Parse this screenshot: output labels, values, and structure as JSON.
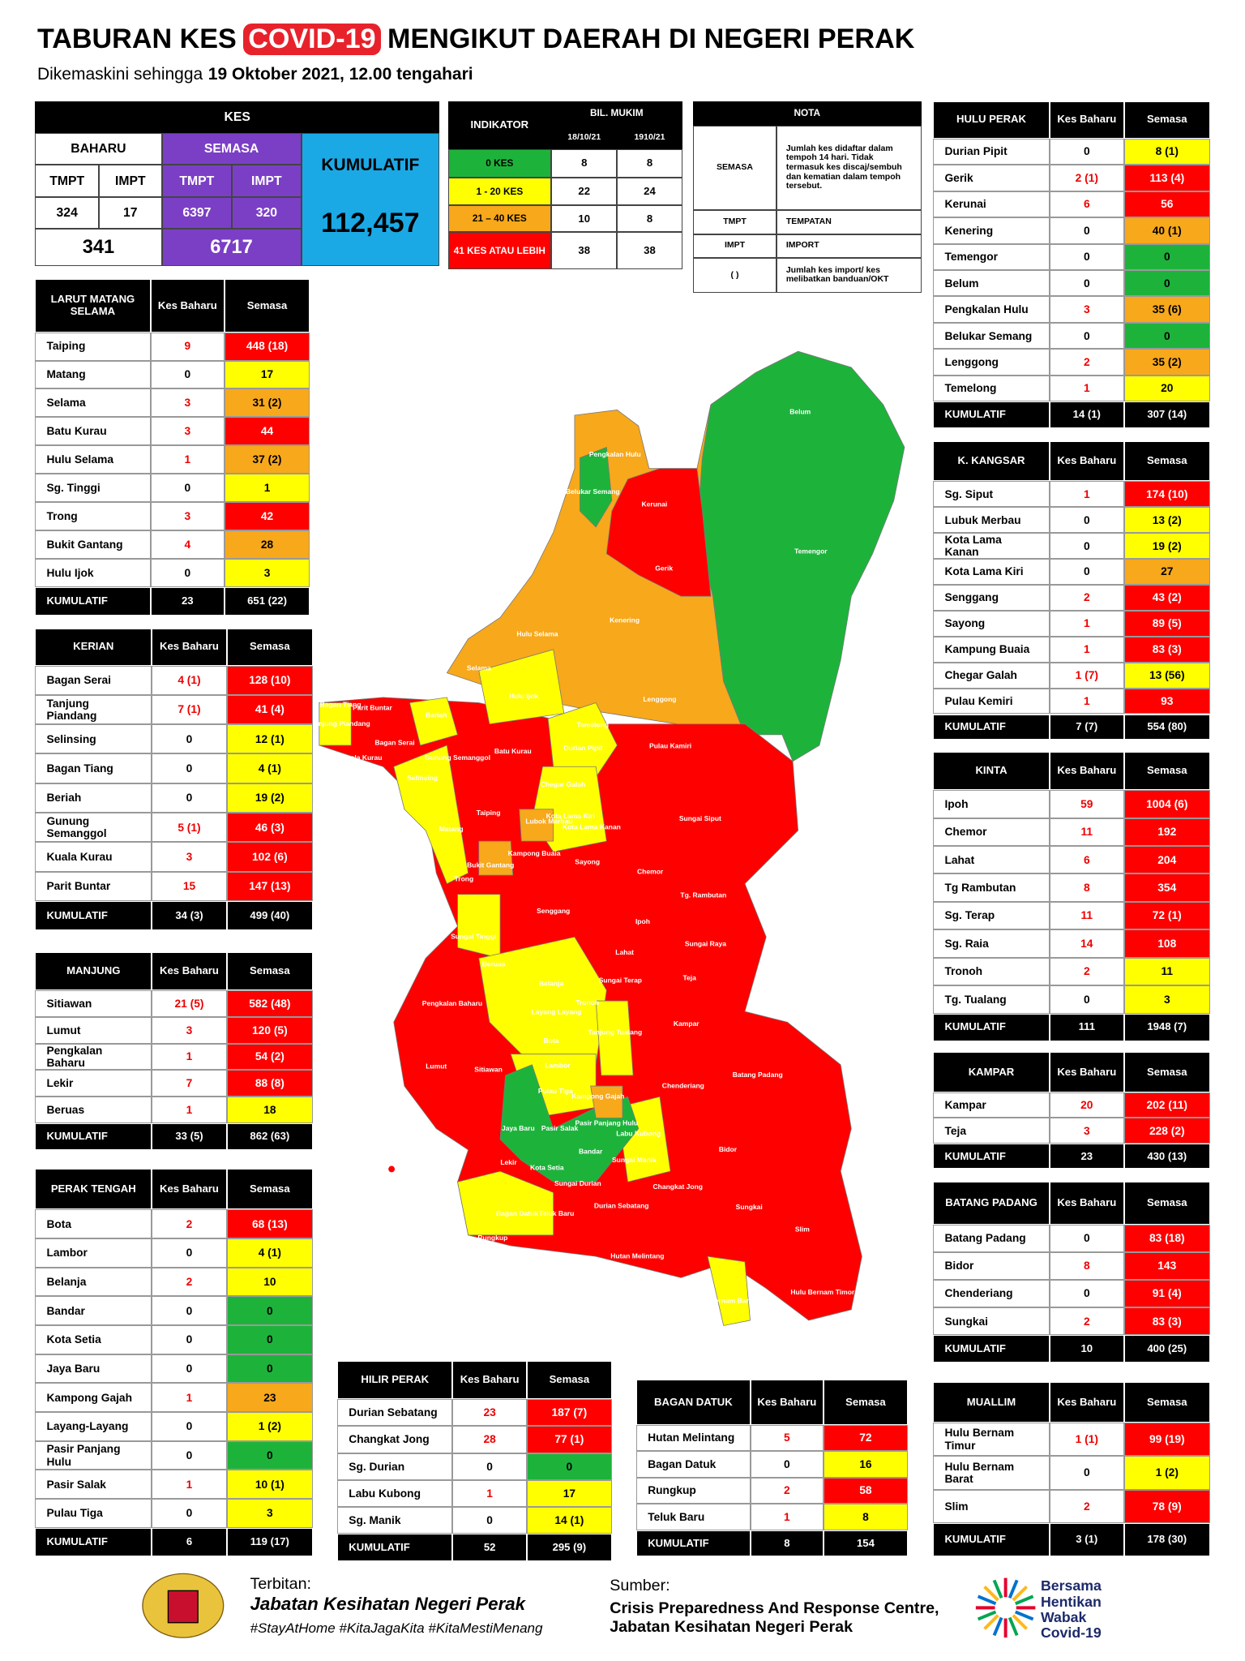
{
  "header": {
    "title_start": "TABURAN KES",
    "title_highlight": "COVID-19",
    "title_end": "MENGIKUT DAERAH DI NEGERI PERAK",
    "subtitle_start": "Dikemaskini sehingga",
    "subtitle_date": "19 Oktober 2021, 12.00 tengahari"
  },
  "summary": {
    "kes": "KES",
    "baharu": "BAHARU",
    "semasa": "SEMASA",
    "baharu_tmpt_label": "TMPT",
    "baharu_impt_label": "IMPT",
    "semasa_tmpt_label": "TMPT",
    "semasa_impt_label": "IMPT",
    "baharu_tmpt": "324",
    "baharu_impt": "17",
    "semasa_tmpt": "6397",
    "semasa_impt": "320",
    "baharu_total": "341",
    "semasa_total": "6717",
    "kumulatif_label": "KUMULATIF",
    "kumulatif": "112,457"
  },
  "indicator": {
    "title": "INDIKATOR",
    "bil_mukim": "BIL. MUKIM",
    "date1": "18/10/21",
    "date2": "1910/21",
    "rows": [
      [
        "0 KES",
        "8",
        "8",
        "#1db33b"
      ],
      [
        "1 - 20 KES",
        "22",
        "24",
        "#ffff00"
      ],
      [
        "21 – 40 KES",
        "10",
        "8",
        "#f7a81b"
      ],
      [
        "41 KES ATAU LEBIH",
        "38",
        "38",
        "#ff0000"
      ]
    ]
  },
  "nota": {
    "title": "NOTA",
    "rows": [
      [
        "SEMASA",
        "Jumlah kes didaftar dalam tempoh 14 hari. Tidak termasuk kes discaj/sembuh dan kematian dalam tempoh tersebut."
      ],
      [
        "TMPT",
        "TEMPATAN"
      ],
      [
        "IMPT",
        "IMPORT"
      ],
      [
        "(     )",
        "Jumlah kes import/ kes melibatkan banduan/OKT"
      ]
    ]
  },
  "districts": [
    {
      "title": "HULU PERAK",
      "kes_header": "Kes Baharu",
      "semasa_header": "Semasa",
      "rows": [
        [
          "Durian Pipit",
          "0",
          "8 (1)",
          "#ffff00"
        ],
        [
          "Gerik",
          "2 (1)",
          "113 (4)",
          "#ff0000"
        ],
        [
          "Kerunai",
          "6",
          "56",
          "#ff0000"
        ],
        [
          "Kenering",
          "0",
          "40 (1)",
          "#f7a81b"
        ],
        [
          "Temengor",
          "0",
          "0",
          "#1db33b"
        ],
        [
          "Belum",
          "0",
          "0",
          "#1db33b"
        ],
        [
          "Pengkalan Hulu",
          "3",
          "35 (6)",
          "#f7a81b"
        ],
        [
          "Belukar Semang",
          "0",
          "0",
          "#1db33b"
        ],
        [
          "Lenggong",
          "2",
          "35 (2)",
          "#f7a81b"
        ],
        [
          "Temelong",
          "1",
          "20",
          "#ffff00"
        ]
      ],
      "total": {
        "label": "KUMULATIF",
        "baharu": "14 (1)",
        "semasa": "307 (14)"
      }
    },
    {
      "title": "LARUT MATANG SELAMA",
      "kes_header": "Kes Baharu",
      "semasa_header": "Semasa",
      "rows": [
        [
          "Taiping",
          "9",
          "448 (18)",
          "#ff0000"
        ],
        [
          "Matang",
          "0",
          "17",
          "#ffff00"
        ],
        [
          "Selama",
          "3",
          "31 (2)",
          "#f7a81b"
        ],
        [
          "Batu Kurau",
          "3",
          "44",
          "#ff0000"
        ],
        [
          "Hulu Selama",
          "1",
          "37 (2)",
          "#f7a81b"
        ],
        [
          "Sg. Tinggi",
          "0",
          "1",
          "#ffff00"
        ],
        [
          "Trong",
          "3",
          "42",
          "#ff0000"
        ],
        [
          "Bukit Gantang",
          "4",
          "28",
          "#f7a81b"
        ],
        [
          "Hulu Ijok",
          "0",
          "3",
          "#ffff00"
        ]
      ],
      "total": {
        "label": "KUMULATIF",
        "baharu": "23",
        "semasa": "651 (22)"
      }
    },
    {
      "title": "KERIAN",
      "kes_header": "Kes Baharu",
      "semasa_header": "Semasa",
      "rows": [
        [
          "Bagan Serai",
          "4 (1)",
          "128 (10)",
          "#ff0000"
        ],
        [
          "Tanjung Piandang",
          "7 (1)",
          "41 (4)",
          "#ff0000"
        ],
        [
          "Selinsing",
          "0",
          "12 (1)",
          "#ffff00"
        ],
        [
          "Bagan Tiang",
          "0",
          "4 (1)",
          "#ffff00"
        ],
        [
          "Beriah",
          "0",
          "19 (2)",
          "#ffff00"
        ],
        [
          "Gunung Semanggol",
          "5 (1)",
          "46 (3)",
          "#ff0000"
        ],
        [
          "Kuala Kurau",
          "3",
          "102 (6)",
          "#ff0000"
        ],
        [
          "Parit Buntar",
          "15",
          "147 (13)",
          "#ff0000"
        ]
      ],
      "total": {
        "label": "KUMULATIF",
        "baharu": "34 (3)",
        "semasa": "499 (40)"
      }
    },
    {
      "title": "MANJUNG",
      "kes_header": "Kes Baharu",
      "semasa_header": "Semasa",
      "rows": [
        [
          "Sitiawan",
          "21 (5)",
          "582 (48)",
          "#ff0000"
        ],
        [
          "Lumut",
          "3",
          "120 (5)",
          "#ff0000"
        ],
        [
          "Pengkalan Baharu",
          "1",
          "54 (2)",
          "#ff0000"
        ],
        [
          "Lekir",
          "7",
          "88 (8)",
          "#ff0000"
        ],
        [
          "Beruas",
          "1",
          "18",
          "#ffff00"
        ]
      ],
      "total": {
        "label": "KUMULATIF",
        "baharu": "33 (5)",
        "semasa": "862 (63)"
      }
    },
    {
      "title": "PERAK TENGAH",
      "kes_header": "Kes Baharu",
      "semasa_header": "Semasa",
      "rows": [
        [
          "Bota",
          "2",
          "68 (13)",
          "#ff0000"
        ],
        [
          "Lambor",
          "0",
          "4 (1)",
          "#ffff00"
        ],
        [
          "Belanja",
          "2",
          "10",
          "#ffff00"
        ],
        [
          "Bandar",
          "0",
          "0",
          "#1db33b"
        ],
        [
          "Kota Setia",
          "0",
          "0",
          "#1db33b"
        ],
        [
          "Jaya Baru",
          "0",
          "0",
          "#1db33b"
        ],
        [
          "Kampong Gajah",
          "1",
          "23",
          "#f7a81b"
        ],
        [
          "Layang-Layang",
          "0",
          "1 (2)",
          "#ffff00"
        ],
        [
          "Pasir Panjang Hulu",
          "0",
          "0",
          "#1db33b"
        ],
        [
          "Pasir Salak",
          "1",
          "10 (1)",
          "#ffff00"
        ],
        [
          "Pulau Tiga",
          "0",
          "3",
          "#ffff00"
        ]
      ],
      "total": {
        "label": "KUMULATIF",
        "baharu": "6",
        "semasa": "119 (17)"
      }
    },
    {
      "title": "HILIR PERAK",
      "kes_header": "Kes Baharu",
      "semasa_header": "Semasa",
      "rows": [
        [
          "Durian Sebatang",
          "23",
          "187 (7)",
          "#ff0000"
        ],
        [
          "Changkat Jong",
          "28",
          "77 (1)",
          "#ff0000"
        ],
        [
          "Sg. Durian",
          "0",
          "0",
          "#1db33b"
        ],
        [
          "Labu Kubong",
          "1",
          "17",
          "#ffff00"
        ],
        [
          "Sg. Manik",
          "0",
          "14 (1)",
          "#ffff00"
        ]
      ],
      "total": {
        "label": "KUMULATIF",
        "baharu": "52",
        "semasa": "295 (9)"
      }
    },
    {
      "title": "BAGAN DATUK",
      "kes_header": "Kes Baharu",
      "semasa_header": "Semasa",
      "rows": [
        [
          "Hutan Melintang",
          "5",
          "72",
          "#ff0000"
        ],
        [
          "Bagan Datuk",
          "0",
          "16",
          "#ffff00"
        ],
        [
          "Rungkup",
          "2",
          "58",
          "#ff0000"
        ],
        [
          "Teluk Baru",
          "1",
          "8",
          "#ffff00"
        ]
      ],
      "total": {
        "label": "KUMULATIF",
        "baharu": "8",
        "semasa": "154"
      }
    },
    {
      "title": "K. KANGSAR",
      "kes_header": "Kes Baharu",
      "semasa_header": "Semasa",
      "rows": [
        [
          "Sg. Siput",
          "1",
          "174 (10)",
          "#ff0000"
        ],
        [
          "Lubuk Merbau",
          "0",
          "13 (2)",
          "#ffff00"
        ],
        [
          "Kota Lama Kanan",
          "0",
          "19 (2)",
          "#ffff00"
        ],
        [
          "Kota Lama Kiri",
          "0",
          "27",
          "#f7a81b"
        ],
        [
          "Senggang",
          "2",
          "43 (2)",
          "#ff0000"
        ],
        [
          "Sayong",
          "1",
          "89 (5)",
          "#ff0000"
        ],
        [
          "Kampung Buaia",
          "1",
          "83 (3)",
          "#ff0000"
        ],
        [
          "Chegar Galah",
          "1 (7)",
          "13 (56)",
          "#ffff00"
        ],
        [
          "Pulau Kemiri",
          "1",
          "93",
          "#ff0000"
        ]
      ],
      "total": {
        "label": "KUMULATIF",
        "baharu": "7 (7)",
        "semasa": "554 (80)"
      }
    },
    {
      "title": "KINTA",
      "kes_header": "Kes Baharu",
      "semasa_header": "Semasa",
      "rows": [
        [
          "Ipoh",
          "59",
          "1004 (6)",
          "#ff0000"
        ],
        [
          "Chemor",
          "11",
          "192",
          "#ff0000"
        ],
        [
          "Lahat",
          "6",
          "204",
          "#ff0000"
        ],
        [
          "Tg Rambutan",
          "8",
          "354",
          "#ff0000"
        ],
        [
          "Sg. Terap",
          "11",
          "72 (1)",
          "#ff0000"
        ],
        [
          "Sg. Raia",
          "14",
          "108",
          "#ff0000"
        ],
        [
          "Tronoh",
          "2",
          "11",
          "#ffff00"
        ],
        [
          "Tg. Tualang",
          "0",
          "3",
          "#ffff00"
        ]
      ],
      "total": {
        "label": "KUMULATIF",
        "baharu": "111",
        "semasa": "1948 (7)"
      }
    },
    {
      "title": "KAMPAR",
      "kes_header": "Kes Baharu",
      "semasa_header": "Semasa",
      "rows": [
        [
          "Kampar",
          "20",
          "202 (11)",
          "#ff0000"
        ],
        [
          "Teja",
          "3",
          "228 (2)",
          "#ff0000"
        ]
      ],
      "total": {
        "label": "KUMULATIF",
        "baharu": "23",
        "semasa": "430 (13)"
      }
    },
    {
      "title": "BATANG PADANG",
      "kes_header": "Kes Baharu",
      "semasa_header": "Semasa",
      "rows": [
        [
          "Batang Padang",
          "0",
          "83 (18)",
          "#ff0000"
        ],
        [
          "Bidor",
          "8",
          "143",
          "#ff0000"
        ],
        [
          "Chenderiang",
          "0",
          "91 (4)",
          "#ff0000"
        ],
        [
          "Sungkai",
          "2",
          "83 (3)",
          "#ff0000"
        ]
      ],
      "total": {
        "label": "KUMULATIF",
        "baharu": "10",
        "semasa": "400 (25)"
      }
    },
    {
      "title": "MUALLIM",
      "kes_header": "Kes Baharu",
      "semasa_header": "Semasa",
      "rows": [
        [
          "Hulu Bernam Timur",
          "1 (1)",
          "99 (19)",
          "#ff0000"
        ],
        [
          "Hulu Bernam Barat",
          "0",
          "1 (2)",
          "#ffff00"
        ],
        [
          "Slim",
          "2",
          "78 (9)",
          "#ff0000"
        ]
      ],
      "total": {
        "label": "KUMULATIF",
        "baharu": "3 (1)",
        "semasa": "178 (30)"
      }
    }
  ],
  "map_labels": [
    "Belum",
    "Temengor",
    "Pengkalan Hulu",
    "Belukar Semang",
    "Kerunai",
    "Gerik",
    "Hulu Selama",
    "Kenering",
    "Selama",
    "Hulu Ijok",
    "Lenggong",
    "Bagan Tiang",
    "Parit Buntar",
    "Tanjung Piandang",
    "Beriah",
    "Temelong",
    "Durian Pipit",
    "Bagan Serai",
    "Gunung Semanggol",
    "Batu Kurau",
    "Pulau Kamiri",
    "Kuala Kurau",
    "Selinsing",
    "Chegar Galah",
    "Sungai Siput",
    "Taiping",
    "Lubok Merbau",
    "Kota Lama Kiri",
    "Kota Lama Kanan",
    "Matang",
    "Kampong Buaia",
    "Bukit Gantang",
    "Sayong",
    "Trong",
    "Chemor",
    "Tg. Rambutan",
    "Senggang",
    "Sungai Tinggi",
    "Ipoh",
    "Sungai Raya",
    "Lahat",
    "Sungai Terap",
    "Teja",
    "Beruas",
    "Belanja",
    "Pengkalan Baharu",
    "Layang Layang",
    "Tronoh",
    "Kampar",
    "Tanjung Tualang",
    "Bota",
    "Lumut",
    "Sitiawan",
    "Lambor",
    "Batang Padang",
    "Chenderiang",
    "Pulau Tiga",
    "Kampong Gajah",
    "Pasir Panjang Hulu",
    "Jaya Baru",
    "Pasir Salak",
    "Labu Kubong",
    "Bandar",
    "Sungai Manik",
    "Bidor",
    "Kota Setia",
    "Lekir",
    "Sungai Durian",
    "Changkat Jong",
    "Sungkai",
    "Bagan Datuk",
    "Teluk Baru",
    "Durian Sebatang",
    "Slim",
    "Rungkup",
    "Hutan Melintang",
    "Hulu Bernam Barat",
    "Hulu Bernam Timor"
  ],
  "footer": {
    "publisher_label": "Terbitan:",
    "publisher": "Jabatan Kesihatan Negeri Perak",
    "hashtags": "#StayAtHome #KitaJagaKita #KitaMestiMenang",
    "source_label": "Sumber:",
    "source_line1": "Crisis Preparedness And Response Centre,",
    "source_line2": "Jabatan Kesihatan Negeri Perak",
    "logo_text": "Bersama Hentikan Wabak Covid-19"
  }
}
